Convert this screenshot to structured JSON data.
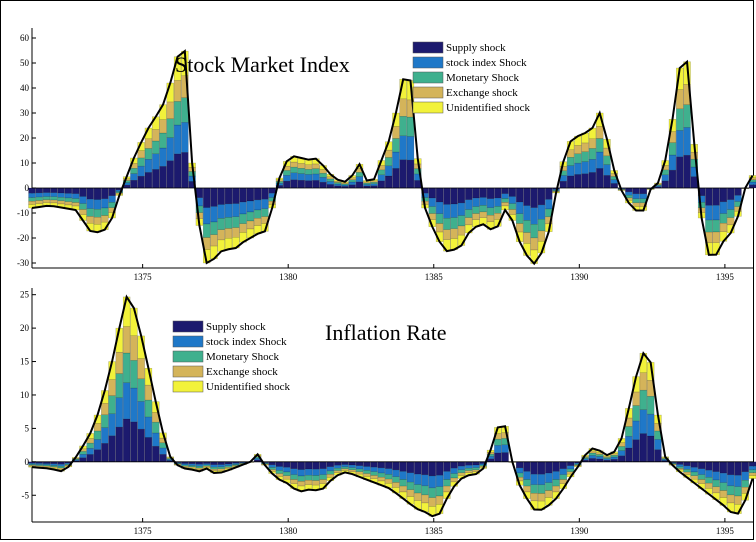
{
  "colors": {
    "supply": "#1c1a6e",
    "stock": "#1f78c8",
    "monetary": "#3fb08e",
    "exchange": "#d4b45a",
    "unidentified": "#f2f23a",
    "total_line": "#000000"
  },
  "chart_data": [
    {
      "type": "bar",
      "stacked": true,
      "title": "Stock Market Index",
      "xlim": [
        1371.2,
        1396
      ],
      "ylim": [
        -32,
        64
      ],
      "x_ticks": [
        1375,
        1380,
        1385,
        1390,
        1395
      ],
      "y_ticks": [
        -30,
        -20,
        -10,
        0,
        10,
        20,
        30,
        40,
        50,
        60
      ],
      "legend": [
        "Supply shock",
        "stock index Shock",
        "Monetary Shock",
        "Exchange shock",
        "Unidentified shock"
      ],
      "legend_position": "top-right",
      "total_anchors": [
        [
          1371.2,
          -8
        ],
        [
          1371.8,
          -7
        ],
        [
          1372.3,
          -8
        ],
        [
          1372.8,
          -9
        ],
        [
          1373.1,
          -17
        ],
        [
          1373.6,
          -18
        ],
        [
          1373.9,
          -14
        ],
        [
          1374.1,
          -6
        ],
        [
          1374.4,
          3
        ],
        [
          1374.7,
          12
        ],
        [
          1374.9,
          17
        ],
        [
          1375.1,
          22
        ],
        [
          1375.4,
          28
        ],
        [
          1375.6,
          30
        ],
        [
          1375.9,
          40
        ],
        [
          1376.1,
          48
        ],
        [
          1376.3,
          57
        ],
        [
          1376.5,
          54
        ],
        [
          1376.6,
          30
        ],
        [
          1376.75,
          0
        ],
        [
          1376.9,
          -12
        ],
        [
          1377.2,
          -30
        ],
        [
          1377.5,
          -28
        ],
        [
          1377.8,
          -24
        ],
        [
          1378.1,
          -25
        ],
        [
          1378.4,
          -22
        ],
        [
          1378.7,
          -20
        ],
        [
          1379.0,
          -18
        ],
        [
          1379.3,
          -17
        ],
        [
          1379.5,
          -5
        ],
        [
          1379.7,
          4
        ],
        [
          1380.0,
          12
        ],
        [
          1380.3,
          13
        ],
        [
          1380.6,
          11
        ],
        [
          1380.9,
          12
        ],
        [
          1381.1,
          11
        ],
        [
          1381.3,
          7
        ],
        [
          1381.6,
          4
        ],
        [
          1381.9,
          2
        ],
        [
          1382.2,
          5
        ],
        [
          1382.4,
          10
        ],
        [
          1382.6,
          8
        ],
        [
          1382.7,
          3
        ],
        [
          1382.9,
          2
        ],
        [
          1383.1,
          8
        ],
        [
          1383.3,
          14
        ],
        [
          1383.5,
          20
        ],
        [
          1383.7,
          30
        ],
        [
          1383.9,
          40
        ],
        [
          1384.1,
          54
        ],
        [
          1384.3,
          32
        ],
        [
          1384.5,
          5
        ],
        [
          1384.7,
          -8
        ],
        [
          1384.9,
          -14
        ],
        [
          1385.1,
          -20
        ],
        [
          1385.3,
          -23
        ],
        [
          1385.5,
          -26
        ],
        [
          1385.8,
          -24
        ],
        [
          1386.1,
          -22
        ],
        [
          1386.3,
          -14
        ],
        [
          1386.6,
          -17
        ],
        [
          1386.8,
          -12
        ],
        [
          1387.0,
          -18
        ],
        [
          1387.3,
          -14
        ],
        [
          1387.5,
          -7
        ],
        [
          1387.7,
          -13
        ],
        [
          1387.9,
          -20
        ],
        [
          1388.1,
          -26
        ],
        [
          1388.3,
          -28
        ],
        [
          1388.5,
          -31
        ],
        [
          1388.6,
          -29
        ],
        [
          1388.9,
          -20
        ],
        [
          1389.1,
          -10
        ],
        [
          1389.2,
          -2
        ],
        [
          1389.4,
          8
        ],
        [
          1389.6,
          18
        ],
        [
          1389.9,
          20
        ],
        [
          1390.1,
          23
        ],
        [
          1390.3,
          21
        ],
        [
          1390.5,
          25
        ],
        [
          1390.7,
          30
        ],
        [
          1390.9,
          22
        ],
        [
          1391.1,
          12
        ],
        [
          1391.3,
          2
        ],
        [
          1391.5,
          -2
        ],
        [
          1391.8,
          -8
        ],
        [
          1392.1,
          -10
        ],
        [
          1392.3,
          -8
        ],
        [
          1392.5,
          2
        ],
        [
          1392.7,
          2
        ],
        [
          1392.9,
          8
        ],
        [
          1393.1,
          20
        ],
        [
          1393.3,
          35
        ],
        [
          1393.6,
          61
        ],
        [
          1393.8,
          40
        ],
        [
          1394.0,
          10
        ],
        [
          1394.2,
          -12
        ],
        [
          1394.4,
          -26
        ],
        [
          1394.6,
          -29
        ],
        [
          1394.9,
          -22
        ],
        [
          1395.2,
          -18
        ],
        [
          1395.5,
          -10
        ],
        [
          1395.7,
          0
        ],
        [
          1395.9,
          2
        ],
        [
          1396.0,
          8
        ]
      ],
      "part_shares": [
        0.26,
        0.22,
        0.18,
        0.16,
        0.18
      ]
    },
    {
      "type": "bar",
      "stacked": true,
      "title": "Inflation Rate",
      "xlim": [
        1371.2,
        1396
      ],
      "ylim": [
        -9,
        26
      ],
      "x_ticks": [
        1375,
        1380,
        1385,
        1390,
        1395
      ],
      "y_ticks": [
        -5,
        0,
        5,
        10,
        15,
        20,
        25
      ],
      "legend": [
        "Supply shock",
        "stock index Shock",
        "Monetary Shock",
        "Exchange shock",
        "Unidentified shock"
      ],
      "legend_position": "top-left",
      "total_anchors": [
        [
          1371.2,
          -0.8
        ],
        [
          1371.8,
          -1.0
        ],
        [
          1372.3,
          -1.5
        ],
        [
          1372.6,
          0
        ],
        [
          1372.9,
          2
        ],
        [
          1373.3,
          5
        ],
        [
          1373.6,
          9
        ],
        [
          1373.9,
          14
        ],
        [
          1374.2,
          20
        ],
        [
          1374.4,
          25
        ],
        [
          1374.7,
          23
        ],
        [
          1375.0,
          18
        ],
        [
          1375.3,
          12
        ],
        [
          1375.6,
          6
        ],
        [
          1375.9,
          1
        ],
        [
          1376.1,
          0
        ],
        [
          1376.3,
          -1
        ],
        [
          1376.6,
          -1
        ],
        [
          1376.9,
          -1.5
        ],
        [
          1377.2,
          -1
        ],
        [
          1377.5,
          -1.8
        ],
        [
          1377.8,
          -1.5
        ],
        [
          1378.1,
          -1
        ],
        [
          1378.4,
          -0.5
        ],
        [
          1378.7,
          0
        ],
        [
          1378.9,
          1.5
        ],
        [
          1379.1,
          0
        ],
        [
          1379.3,
          -1
        ],
        [
          1379.6,
          -2.5
        ],
        [
          1379.9,
          -3
        ],
        [
          1380.2,
          -4
        ],
        [
          1380.5,
          -4.5
        ],
        [
          1380.8,
          -4
        ],
        [
          1381.1,
          -4.5
        ],
        [
          1381.4,
          -3
        ],
        [
          1381.7,
          -2
        ],
        [
          1382.0,
          -1.5
        ],
        [
          1382.3,
          -2
        ],
        [
          1382.6,
          -2.5
        ],
        [
          1382.9,
          -3
        ],
        [
          1383.2,
          -3.5
        ],
        [
          1383.5,
          -4
        ],
        [
          1383.8,
          -5
        ],
        [
          1384.1,
          -6
        ],
        [
          1384.4,
          -7
        ],
        [
          1384.7,
          -7.5
        ],
        [
          1384.9,
          -8
        ],
        [
          1385.1,
          -8.5
        ],
        [
          1385.3,
          -7
        ],
        [
          1385.5,
          -5
        ],
        [
          1385.8,
          -3
        ],
        [
          1386.1,
          -2
        ],
        [
          1386.4,
          -2
        ],
        [
          1386.7,
          -1
        ],
        [
          1386.9,
          1
        ],
        [
          1387.1,
          4
        ],
        [
          1387.3,
          6.3
        ],
        [
          1387.5,
          5
        ],
        [
          1387.7,
          0
        ],
        [
          1387.9,
          -3
        ],
        [
          1388.1,
          -5
        ],
        [
          1388.3,
          -6
        ],
        [
          1388.5,
          -7.5
        ],
        [
          1388.8,
          -7
        ],
        [
          1389.1,
          -6
        ],
        [
          1389.3,
          -5
        ],
        [
          1389.6,
          -3
        ],
        [
          1389.8,
          -1.5
        ],
        [
          1390.1,
          0
        ],
        [
          1390.3,
          2
        ],
        [
          1390.6,
          2
        ],
        [
          1390.9,
          1
        ],
        [
          1391.1,
          1
        ],
        [
          1391.3,
          2
        ],
        [
          1391.5,
          4
        ],
        [
          1391.7,
          8
        ],
        [
          1391.9,
          12
        ],
        [
          1392.1,
          15
        ],
        [
          1392.3,
          17.5
        ],
        [
          1392.5,
          14
        ],
        [
          1392.7,
          7
        ],
        [
          1392.9,
          1
        ],
        [
          1393.1,
          0
        ],
        [
          1393.3,
          -1
        ],
        [
          1393.6,
          -2
        ],
        [
          1393.9,
          -3
        ],
        [
          1394.2,
          -4
        ],
        [
          1394.5,
          -5
        ],
        [
          1394.8,
          -6
        ],
        [
          1395.1,
          -7
        ],
        [
          1395.3,
          -8
        ],
        [
          1395.6,
          -7.5
        ],
        [
          1395.8,
          -4
        ],
        [
          1396.0,
          -2
        ]
      ],
      "part_shares": [
        0.26,
        0.22,
        0.18,
        0.16,
        0.18
      ]
    }
  ]
}
